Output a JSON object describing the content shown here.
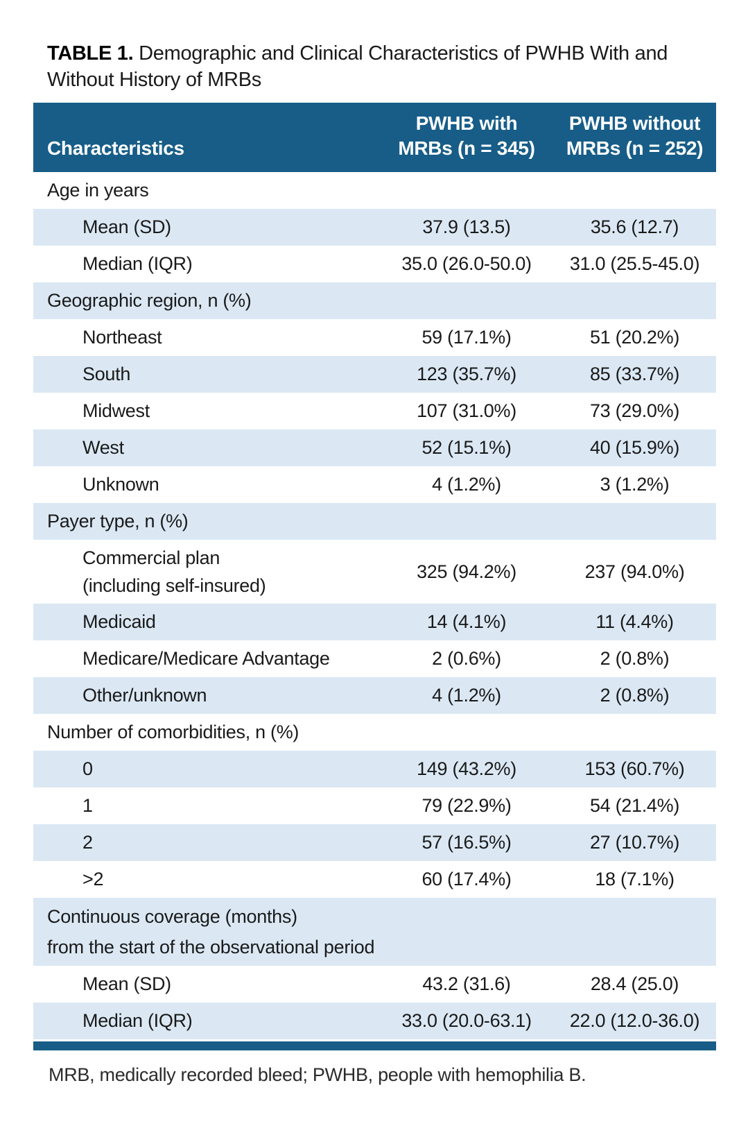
{
  "colors": {
    "header_bg": "#175d88",
    "row_shade": "#dbe8f4",
    "rule": "#175d88"
  },
  "title": {
    "label": "TABLE 1.",
    "line1": "Demographic and Clinical Characteristics of PWHB With and",
    "line2": "Without History of MRBs"
  },
  "table": {
    "header": {
      "col1": "Characteristics",
      "col2_line1": "PWHB with",
      "col2_line2": "MRBs (n = 345)",
      "col3_line1": "PWHB without",
      "col3_line2": "MRBs (n = 252)"
    },
    "rows": [
      {
        "kind": "category",
        "label": "Age in years",
        "shaded": false
      },
      {
        "kind": "data",
        "label": "Mean (SD)",
        "v1": "37.9 (13.5)",
        "v2": "35.6 (12.7)",
        "shaded": true
      },
      {
        "kind": "data",
        "label": "Median (IQR)",
        "v1": "35.0 (26.0-50.0)",
        "v2": "31.0 (25.5-45.0)",
        "shaded": false
      },
      {
        "kind": "category",
        "label": "Geographic region, n (%)",
        "shaded": true
      },
      {
        "kind": "data",
        "label": "Northeast",
        "v1": "59 (17.1%)",
        "v2": "51 (20.2%)",
        "shaded": false
      },
      {
        "kind": "data",
        "label": "South",
        "v1": "123 (35.7%)",
        "v2": "85 (33.7%)",
        "shaded": true
      },
      {
        "kind": "data",
        "label": "Midwest",
        "v1": "107 (31.0%)",
        "v2": "73 (29.0%)",
        "shaded": false
      },
      {
        "kind": "data",
        "label": "West",
        "v1": "52 (15.1%)",
        "v2": "40 (15.9%)",
        "shaded": true
      },
      {
        "kind": "data",
        "label": "Unknown",
        "v1": "4 (1.2%)",
        "v2": "3 (1.2%)",
        "shaded": false
      },
      {
        "kind": "category",
        "label": "Payer type, n (%)",
        "shaded": true
      },
      {
        "kind": "data",
        "label": "Commercial plan",
        "label2": "(including self-insured)",
        "v1": "325 (94.2%)",
        "v2": "237 (94.0%)",
        "shaded": false
      },
      {
        "kind": "data",
        "label": "Medicaid",
        "v1": "14 (4.1%)",
        "v2": "11 (4.4%)",
        "shaded": true
      },
      {
        "kind": "data",
        "label": "Medicare/Medicare Advantage",
        "v1": "2 (0.6%)",
        "v2": "2 (0.8%)",
        "shaded": false
      },
      {
        "kind": "data",
        "label": "Other/unknown",
        "v1": "4 (1.2%)",
        "v2": "2 (0.8%)",
        "shaded": true
      },
      {
        "kind": "category",
        "label": "Number of comorbidities, n (%)",
        "shaded": false
      },
      {
        "kind": "data",
        "label": "0",
        "v1": "149 (43.2%)",
        "v2": "153 (60.7%)",
        "shaded": true
      },
      {
        "kind": "data",
        "label": "1",
        "v1": "79 (22.9%)",
        "v2": "54 (21.4%)",
        "shaded": false
      },
      {
        "kind": "data",
        "label": "2",
        "v1": "57 (16.5%)",
        "v2": "27 (10.7%)",
        "shaded": true
      },
      {
        "kind": "data",
        "label": ">2",
        "v1": "60 (17.4%)",
        "v2": "18 (7.1%)",
        "shaded": false
      },
      {
        "kind": "category",
        "label": "Continuous coverage (months)",
        "label2": "from the start of the observational period",
        "shaded": true
      },
      {
        "kind": "data",
        "label": "Mean (SD)",
        "v1": "43.2 (31.6)",
        "v2": "28.4 (25.0)",
        "shaded": false
      },
      {
        "kind": "data",
        "label": "Median (IQR)",
        "v1": "33.0 (20.0-63.1)",
        "v2": "22.0 (12.0-36.0)",
        "shaded": true
      }
    ]
  },
  "footnote": "MRB, medically recorded bleed; PWHB, people with hemophilia B."
}
